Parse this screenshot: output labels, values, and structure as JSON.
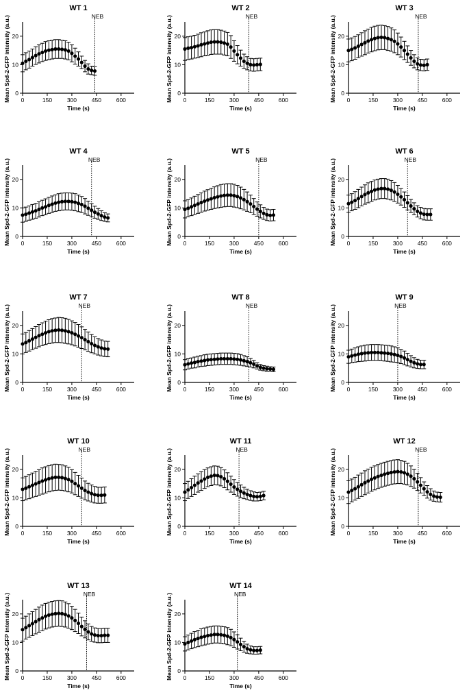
{
  "colors": {
    "points": "#000000",
    "axes": "#000000",
    "background": "#ffffff"
  },
  "chart_data": [
    {
      "type": "scatter",
      "title": "WT 1",
      "xlabel": "Time (s)",
      "ylabel": "Mean Spd-2-GFP intensity (a.u.)",
      "xlim": [
        0,
        680
      ],
      "ylim": [
        0,
        25
      ],
      "xticks": [
        0,
        150,
        300,
        450,
        600
      ],
      "yticks": [
        0,
        10,
        20
      ],
      "neb_label": "NEB",
      "neb_x": 440,
      "x_start": 0,
      "x_step": 20,
      "y": [
        10.5,
        11.2,
        11.8,
        12.5,
        13.2,
        13.8,
        14.3,
        14.8,
        15.1,
        15.3,
        15.5,
        15.5,
        15.4,
        15.2,
        14.8,
        14.0,
        13.0,
        12.0,
        10.8,
        9.5,
        8.5,
        8.0,
        7.8
      ],
      "err": [
        3.0,
        3.0,
        3.0,
        3.0,
        3.1,
        3.2,
        3.2,
        3.3,
        3.3,
        3.3,
        3.3,
        3.3,
        3.2,
        3.2,
        3.1,
        3.0,
        2.8,
        2.5,
        2.2,
        2.0,
        1.8,
        1.5,
        1.5
      ]
    },
    {
      "type": "scatter",
      "title": "WT 2",
      "xlabel": "Time (s)",
      "ylabel": "Mean Spd-2-GFP intensity (a.u.)",
      "xlim": [
        0,
        680
      ],
      "ylim": [
        0,
        25
      ],
      "xticks": [
        0,
        150,
        300,
        450,
        600
      ],
      "yticks": [
        0,
        10,
        20
      ],
      "neb_label": "NEB",
      "neb_x": 390,
      "x_start": 0,
      "x_step": 20,
      "y": [
        15.5,
        15.8,
        16.0,
        16.3,
        16.6,
        17.0,
        17.3,
        17.6,
        17.9,
        18.0,
        18.0,
        17.9,
        17.6,
        17.2,
        16.2,
        14.8,
        13.5,
        12.3,
        11.2,
        10.5,
        10.0,
        9.9,
        10.0,
        10.1
      ],
      "err": [
        4.0,
        4.0,
        4.0,
        4.0,
        4.1,
        4.2,
        4.2,
        4.3,
        4.3,
        4.3,
        4.3,
        4.2,
        4.2,
        4.1,
        4.0,
        3.6,
        3.2,
        2.8,
        2.5,
        2.3,
        2.2,
        2.2,
        2.2,
        2.2
      ]
    },
    {
      "type": "scatter",
      "title": "WT 3",
      "xlabel": "Time (s)",
      "ylabel": "Mean Spd-2-GFP intensity (a.u.)",
      "xlim": [
        0,
        680
      ],
      "ylim": [
        0,
        25
      ],
      "xticks": [
        0,
        150,
        300,
        450,
        600
      ],
      "yticks": [
        0,
        10,
        20
      ],
      "neb_label": "NEB",
      "neb_x": 425,
      "x_start": 0,
      "x_step": 20,
      "y": [
        15.0,
        15.4,
        15.9,
        16.5,
        17.1,
        17.7,
        18.3,
        18.8,
        19.2,
        19.5,
        19.6,
        19.5,
        19.2,
        18.8,
        18.2,
        17.3,
        16.2,
        15.0,
        13.7,
        12.4,
        11.2,
        10.3,
        9.9,
        9.8,
        10.0
      ],
      "err": [
        4.0,
        4.0,
        4.0,
        4.0,
        4.1,
        4.2,
        4.2,
        4.3,
        4.3,
        4.3,
        4.3,
        4.2,
        4.2,
        4.1,
        4.0,
        3.8,
        3.5,
        3.2,
        2.9,
        2.6,
        2.3,
        2.1,
        2.0,
        2.0,
        2.0
      ]
    },
    {
      "type": "scatter",
      "title": "WT 4",
      "xlabel": "Time (s)",
      "ylabel": "Mean Spd-2-GFP intensity (a.u.)",
      "xlim": [
        0,
        680
      ],
      "ylim": [
        0,
        25
      ],
      "xticks": [
        0,
        150,
        300,
        450,
        600
      ],
      "yticks": [
        0,
        10,
        20
      ],
      "neb_label": "NEB",
      "neb_x": 420,
      "x_start": 0,
      "x_step": 20,
      "y": [
        7.5,
        7.8,
        8.2,
        8.6,
        9.0,
        9.5,
        10.0,
        10.4,
        10.9,
        11.3,
        11.7,
        12.0,
        12.2,
        12.3,
        12.3,
        12.2,
        12.0,
        11.6,
        11.2,
        10.6,
        9.9,
        9.2,
        8.5,
        7.9,
        7.3,
        6.8,
        6.5
      ],
      "err": [
        2.5,
        2.5,
        2.5,
        2.6,
        2.6,
        2.7,
        2.7,
        2.8,
        2.8,
        2.9,
        2.9,
        3.0,
        3.0,
        3.0,
        3.0,
        3.0,
        3.0,
        2.9,
        2.8,
        2.7,
        2.5,
        2.3,
        2.1,
        1.9,
        1.7,
        1.5,
        1.4
      ]
    },
    {
      "type": "scatter",
      "title": "WT 5",
      "xlabel": "Time (s)",
      "ylabel": "Mean Spd-2-GFP intensity (a.u.)",
      "xlim": [
        0,
        680
      ],
      "ylim": [
        0,
        25
      ],
      "xticks": [
        0,
        150,
        300,
        450,
        600
      ],
      "yticks": [
        0,
        10,
        20
      ],
      "neb_label": "NEB",
      "neb_x": 450,
      "x_start": 0,
      "x_step": 20,
      "y": [
        9.5,
        9.9,
        10.4,
        10.9,
        11.4,
        11.9,
        12.4,
        12.8,
        13.2,
        13.6,
        13.9,
        14.2,
        14.4,
        14.5,
        14.5,
        14.3,
        14.0,
        13.5,
        12.9,
        12.2,
        11.4,
        10.5,
        9.6,
        8.8,
        8.1,
        7.6,
        7.4,
        7.5
      ],
      "err": [
        3.0,
        3.0,
        3.1,
        3.2,
        3.3,
        3.4,
        3.5,
        3.6,
        3.7,
        3.8,
        3.9,
        4.0,
        4.0,
        4.0,
        4.0,
        4.0,
        3.9,
        3.8,
        3.6,
        3.4,
        3.1,
        2.8,
        2.5,
        2.3,
        2.1,
        2.0,
        2.0,
        2.0
      ]
    },
    {
      "type": "scatter",
      "title": "WT 6",
      "xlabel": "Time (s)",
      "ylabel": "Mean Spd-2-GFP intensity (a.u.)",
      "xlim": [
        0,
        680
      ],
      "ylim": [
        0,
        25
      ],
      "xticks": [
        0,
        150,
        300,
        450,
        600
      ],
      "yticks": [
        0,
        10,
        20
      ],
      "neb_label": "NEB",
      "neb_x": 360,
      "x_start": 0,
      "x_step": 20,
      "y": [
        11.5,
        12.0,
        12.6,
        13.3,
        14.0,
        14.7,
        15.3,
        15.8,
        16.3,
        16.6,
        16.8,
        16.8,
        16.6,
        16.2,
        15.6,
        14.8,
        13.9,
        12.9,
        11.8,
        10.7,
        9.7,
        8.8,
        8.2,
        7.8,
        7.7,
        7.7
      ],
      "err": [
        3.0,
        3.0,
        3.1,
        3.2,
        3.3,
        3.4,
        3.5,
        3.5,
        3.5,
        3.5,
        3.5,
        3.5,
        3.5,
        3.4,
        3.3,
        3.1,
        2.9,
        2.7,
        2.5,
        2.3,
        2.1,
        2.0,
        2.0,
        2.0,
        2.0,
        2.0
      ]
    },
    {
      "type": "scatter",
      "title": "WT 7",
      "xlabel": "Time (s)",
      "ylabel": "Mean Spd-2-GFP intensity (a.u.)",
      "xlim": [
        0,
        680
      ],
      "ylim": [
        0,
        25
      ],
      "xticks": [
        0,
        150,
        300,
        450,
        600
      ],
      "yticks": [
        0,
        10,
        20
      ],
      "neb_label": "NEB",
      "neb_x": 360,
      "x_start": 0,
      "x_step": 20,
      "y": [
        13.5,
        14.0,
        14.6,
        15.2,
        15.8,
        16.4,
        16.9,
        17.4,
        17.8,
        18.1,
        18.3,
        18.4,
        18.3,
        18.1,
        17.8,
        17.4,
        16.9,
        16.3,
        15.7,
        15.0,
        14.3,
        13.6,
        13.0,
        12.5,
        12.1,
        11.8,
        11.7
      ],
      "err": [
        3.5,
        3.5,
        3.6,
        3.7,
        3.8,
        3.9,
        4.0,
        4.1,
        4.2,
        4.3,
        4.3,
        4.4,
        4.4,
        4.4,
        4.3,
        4.2,
        4.1,
        4.0,
        3.8,
        3.6,
        3.4,
        3.2,
        3.0,
        2.9,
        2.8,
        2.7,
        2.7
      ]
    },
    {
      "type": "scatter",
      "title": "WT 8",
      "xlabel": "Time (s)",
      "ylabel": "Mean Spd-2-GFP intensity (a.u.)",
      "xlim": [
        0,
        680
      ],
      "ylim": [
        0,
        25
      ],
      "xticks": [
        0,
        150,
        300,
        450,
        600
      ],
      "yticks": [
        0,
        10,
        20
      ],
      "neb_label": "NEB",
      "neb_x": 390,
      "x_start": 0,
      "x_step": 20,
      "y": [
        6.2,
        6.5,
        6.8,
        7.0,
        7.3,
        7.5,
        7.7,
        7.9,
        8.0,
        8.1,
        8.2,
        8.3,
        8.3,
        8.3,
        8.3,
        8.2,
        8.1,
        7.9,
        7.6,
        7.3,
        6.9,
        6.4,
        5.8,
        5.3,
        5.0,
        4.8,
        4.7,
        4.6
      ],
      "err": [
        1.8,
        1.8,
        1.8,
        1.9,
        1.9,
        1.9,
        2.0,
        2.0,
        2.0,
        2.0,
        2.0,
        2.0,
        2.0,
        2.0,
        2.0,
        2.0,
        2.0,
        1.9,
        1.8,
        1.7,
        1.5,
        1.3,
        1.1,
        1.0,
        0.9,
        0.9,
        0.8,
        0.8
      ]
    },
    {
      "type": "scatter",
      "title": "WT 9",
      "xlabel": "Time (s)",
      "ylabel": "Mean Spd-2-GFP intensity (a.u.)",
      "xlim": [
        0,
        680
      ],
      "ylim": [
        0,
        25
      ],
      "xticks": [
        0,
        150,
        300,
        450,
        600
      ],
      "yticks": [
        0,
        10,
        20
      ],
      "neb_label": "NEB",
      "neb_x": 300,
      "x_start": 0,
      "x_step": 20,
      "y": [
        9.0,
        9.3,
        9.6,
        9.9,
        10.1,
        10.3,
        10.4,
        10.5,
        10.5,
        10.5,
        10.4,
        10.3,
        10.2,
        10.0,
        9.8,
        9.5,
        9.1,
        8.6,
        8.0,
        7.4,
        6.9,
        6.5,
        6.3,
        6.3
      ],
      "err": [
        2.3,
        2.4,
        2.5,
        2.6,
        2.7,
        2.8,
        2.8,
        2.8,
        2.8,
        2.8,
        2.8,
        2.8,
        2.8,
        2.8,
        2.7,
        2.6,
        2.5,
        2.4,
        2.2,
        2.0,
        1.8,
        1.6,
        1.5,
        1.5
      ]
    },
    {
      "type": "scatter",
      "title": "WT 10",
      "xlabel": "Time (s)",
      "ylabel": "Mean Spd-2-GFP intensity (a.u.)",
      "xlim": [
        0,
        680
      ],
      "ylim": [
        0,
        25
      ],
      "xticks": [
        0,
        150,
        300,
        450,
        600
      ],
      "yticks": [
        0,
        10,
        20
      ],
      "neb_label": "NEB",
      "neb_x": 360,
      "x_start": 0,
      "x_step": 20,
      "y": [
        13.0,
        13.4,
        13.9,
        14.4,
        14.9,
        15.4,
        15.9,
        16.3,
        16.7,
        17.0,
        17.2,
        17.2,
        17.1,
        16.8,
        16.4,
        15.8,
        15.0,
        14.2,
        13.4,
        12.6,
        12.0,
        11.5,
        11.1,
        10.9,
        10.9,
        11.0
      ],
      "err": [
        4.0,
        4.1,
        4.2,
        4.3,
        4.4,
        4.5,
        4.6,
        4.6,
        4.6,
        4.6,
        4.6,
        4.5,
        4.5,
        4.4,
        4.3,
        4.1,
        3.9,
        3.7,
        3.5,
        3.3,
        3.1,
        3.0,
        2.9,
        2.8,
        2.8,
        2.8
      ]
    },
    {
      "type": "scatter",
      "title": "WT 11",
      "xlabel": "Time (s)",
      "ylabel": "Mean Spd-2-GFP intensity (a.u.)",
      "xlim": [
        0,
        680
      ],
      "ylim": [
        0,
        25
      ],
      "xticks": [
        0,
        150,
        300,
        450,
        600
      ],
      "yticks": [
        0,
        10,
        20
      ],
      "neb_label": "NEB",
      "neb_x": 330,
      "x_start": 0,
      "x_step": 20,
      "y": [
        12.0,
        12.8,
        13.6,
        14.4,
        15.2,
        15.9,
        16.6,
        17.2,
        17.6,
        17.9,
        17.8,
        17.4,
        16.7,
        15.8,
        14.8,
        13.8,
        13.0,
        12.3,
        11.7,
        11.2,
        10.8,
        10.5,
        10.4,
        10.5,
        10.8
      ],
      "err": [
        3.0,
        3.0,
        3.1,
        3.2,
        3.2,
        3.3,
        3.3,
        3.3,
        3.3,
        3.3,
        3.3,
        3.2,
        3.1,
        3.0,
        2.8,
        2.6,
        2.4,
        2.2,
        2.0,
        1.8,
        1.7,
        1.6,
        1.5,
        1.5,
        1.5
      ]
    },
    {
      "type": "scatter",
      "title": "WT 12",
      "xlabel": "Time (s)",
      "ylabel": "Mean Spd-2-GFP intensity (a.u.)",
      "xlim": [
        0,
        680
      ],
      "ylim": [
        0,
        25
      ],
      "xticks": [
        0,
        150,
        300,
        450,
        600
      ],
      "yticks": [
        0,
        10,
        20
      ],
      "neb_label": "NEB",
      "neb_x": 425,
      "x_start": 0,
      "x_step": 20,
      "y": [
        12.0,
        12.6,
        13.2,
        13.9,
        14.6,
        15.3,
        15.9,
        16.5,
        17.0,
        17.5,
        17.9,
        18.3,
        18.6,
        18.9,
        19.1,
        19.2,
        19.1,
        18.8,
        18.3,
        17.6,
        16.7,
        15.6,
        14.4,
        13.2,
        12.1,
        11.2,
        10.6,
        10.3,
        10.2
      ],
      "err": [
        4.0,
        4.0,
        4.0,
        4.1,
        4.1,
        4.2,
        4.2,
        4.2,
        4.2,
        4.2,
        4.2,
        4.2,
        4.2,
        4.2,
        4.2,
        4.2,
        4.1,
        4.0,
        3.8,
        3.6,
        3.3,
        3.0,
        2.7,
        2.4,
        2.2,
        2.0,
        1.8,
        1.7,
        1.7
      ]
    },
    {
      "type": "scatter",
      "title": "WT 13",
      "xlabel": "Time (s)",
      "ylabel": "Mean Spd-2-GFP intensity (a.u.)",
      "xlim": [
        0,
        680
      ],
      "ylim": [
        0,
        25
      ],
      "xticks": [
        0,
        150,
        300,
        450,
        600
      ],
      "yticks": [
        0,
        10,
        20
      ],
      "neb_label": "NEB",
      "neb_x": 390,
      "x_start": 0,
      "x_step": 20,
      "y": [
        14.5,
        15.2,
        15.9,
        16.6,
        17.3,
        18.0,
        18.6,
        19.2,
        19.6,
        19.9,
        20.1,
        20.2,
        20.1,
        19.8,
        19.3,
        18.6,
        17.7,
        16.7,
        15.6,
        14.6,
        13.7,
        13.0,
        12.6,
        12.4,
        12.4,
        12.5,
        12.5
      ],
      "err": [
        4.0,
        4.0,
        4.1,
        4.2,
        4.3,
        4.4,
        4.5,
        4.5,
        4.5,
        4.5,
        4.5,
        4.5,
        4.5,
        4.4,
        4.3,
        4.1,
        3.9,
        3.6,
        3.3,
        3.0,
        2.8,
        2.6,
        2.5,
        2.5,
        2.5,
        2.5,
        2.5
      ]
    },
    {
      "type": "scatter",
      "title": "WT 14",
      "xlabel": "Time (s)",
      "ylabel": "Mean Spd-2-GFP intensity (a.u.)",
      "xlim": [
        0,
        680
      ],
      "ylim": [
        0,
        25
      ],
      "xticks": [
        0,
        150,
        300,
        450,
        600
      ],
      "yticks": [
        0,
        10,
        20
      ],
      "neb_label": "NEB",
      "neb_x": 320,
      "x_start": 0,
      "x_step": 20,
      "y": [
        9.5,
        10.0,
        10.5,
        11.0,
        11.4,
        11.8,
        12.1,
        12.4,
        12.6,
        12.8,
        12.8,
        12.7,
        12.5,
        12.2,
        11.7,
        11.0,
        10.2,
        9.3,
        8.5,
        7.8,
        7.4,
        7.2,
        7.2,
        7.3
      ],
      "err": [
        2.5,
        2.6,
        2.7,
        2.8,
        2.9,
        3.0,
        3.0,
        3.0,
        3.0,
        3.0,
        3.0,
        3.0,
        3.0,
        3.0,
        2.9,
        2.7,
        2.5,
        2.2,
        1.9,
        1.6,
        1.4,
        1.3,
        1.3,
        1.3
      ]
    }
  ]
}
